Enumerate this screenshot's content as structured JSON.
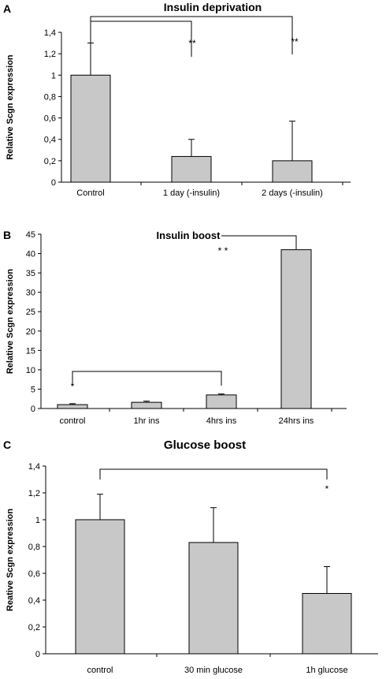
{
  "chart_data": [
    {
      "panel": "A",
      "type": "bar",
      "title": "Insulin deprivation",
      "ylabel": "Relative Scgn expression",
      "xlabel": "",
      "ylim": [
        0,
        1.4
      ],
      "yticks": [
        "0",
        "0,2",
        "0,4",
        "0,6",
        "0,8",
        "1",
        "1,2",
        "1,4"
      ],
      "categories": [
        "Control",
        "1 day (-insulin)",
        "2 days (-insulin)"
      ],
      "values": [
        1.0,
        0.24,
        0.2
      ],
      "errors": [
        0.3,
        0.16,
        0.37
      ],
      "bar_color": "#c8c8c8",
      "significance": [
        {
          "from": 0,
          "to": 1,
          "label": "**"
        },
        {
          "from": 0,
          "to": 2,
          "label": "**"
        }
      ]
    },
    {
      "panel": "B",
      "type": "bar",
      "title": "Insulin boost",
      "ylabel": "Relative Scgn expression",
      "xlabel": "",
      "ylim": [
        0,
        45
      ],
      "yticks": [
        "0",
        "5",
        "10",
        "15",
        "20",
        "25",
        "30",
        "35",
        "40",
        "45"
      ],
      "categories": [
        "control",
        "1hr ins",
        "4hrs ins",
        "24hrs ins"
      ],
      "values": [
        1.0,
        1.6,
        3.5,
        41.0
      ],
      "errors": [
        0.25,
        0.3,
        0.25,
        0.0
      ],
      "bar_color": "#c8c8c8",
      "significance": [
        {
          "from": 0,
          "to": 2,
          "label": "*"
        },
        {
          "from": 2,
          "to": 3,
          "label": "* *"
        }
      ]
    },
    {
      "panel": "C",
      "type": "bar",
      "title": "Glucose boost",
      "ylabel": "Reative Scgn expression",
      "xlabel": "",
      "ylim": [
        0,
        1.4
      ],
      "yticks": [
        "0",
        "0,2",
        "0,4",
        "0,6",
        "0,8",
        "1",
        "1,2",
        "1,4"
      ],
      "categories": [
        "control",
        "30 min glucose",
        "1h glucose"
      ],
      "values": [
        1.0,
        0.83,
        0.45
      ],
      "errors": [
        0.19,
        0.26,
        0.2
      ],
      "bar_color": "#c8c8c8",
      "significance": [
        {
          "from": 0,
          "to": 2,
          "label": "*"
        }
      ]
    }
  ]
}
